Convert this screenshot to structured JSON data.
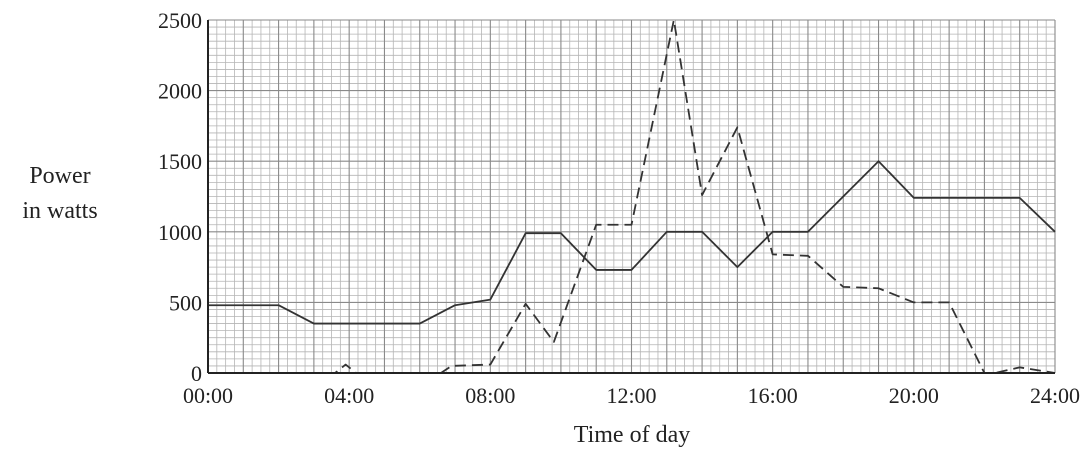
{
  "chart_data": {
    "type": "line",
    "title": "",
    "xlabel": "Time of day",
    "ylabel_lines": [
      "Power",
      "in watts"
    ],
    "xlim": [
      0,
      24
    ],
    "ylim": [
      0,
      2500
    ],
    "grid": true,
    "x_ticks": [
      {
        "value": 0,
        "label": "00:00"
      },
      {
        "value": 4,
        "label": "04:00"
      },
      {
        "value": 8,
        "label": "08:00"
      },
      {
        "value": 12,
        "label": "12:00"
      },
      {
        "value": 16,
        "label": "16:00"
      },
      {
        "value": 20,
        "label": "20:00"
      },
      {
        "value": 24,
        "label": "24:00"
      }
    ],
    "y_ticks": [
      {
        "value": 0,
        "label": "0"
      },
      {
        "value": 500,
        "label": "500"
      },
      {
        "value": 1000,
        "label": "1000"
      },
      {
        "value": 1500,
        "label": "1500"
      },
      {
        "value": 2000,
        "label": "2000"
      },
      {
        "value": 2500,
        "label": "2500"
      }
    ],
    "series": [
      {
        "line_style": "solid",
        "color": "#333333",
        "points": [
          [
            0,
            480
          ],
          [
            2,
            480
          ],
          [
            3,
            350
          ],
          [
            6,
            350
          ],
          [
            7,
            480
          ],
          [
            8,
            520
          ],
          [
            9,
            990
          ],
          [
            10,
            990
          ],
          [
            11,
            730
          ],
          [
            12,
            730
          ],
          [
            13,
            1000
          ],
          [
            14,
            1000
          ],
          [
            15,
            750
          ],
          [
            16,
            1000
          ],
          [
            17,
            1000
          ],
          [
            18,
            1250
          ],
          [
            19,
            1500
          ],
          [
            20,
            1240
          ],
          [
            23,
            1240
          ],
          [
            24,
            1000
          ]
        ]
      },
      {
        "line_style": "dashed",
        "color": "#333333",
        "points": [
          [
            0,
            0
          ],
          [
            3.6,
            0
          ],
          [
            3.9,
            60
          ],
          [
            4.2,
            0
          ],
          [
            6.6,
            0
          ],
          [
            6.9,
            50
          ],
          [
            8,
            60
          ],
          [
            9,
            490
          ],
          [
            9.8,
            220
          ],
          [
            11,
            1050
          ],
          [
            12,
            1050
          ],
          [
            13.2,
            2500
          ],
          [
            14,
            1260
          ],
          [
            15,
            1740
          ],
          [
            16,
            840
          ],
          [
            17,
            830
          ],
          [
            18,
            610
          ],
          [
            19,
            600
          ],
          [
            20,
            500
          ],
          [
            21,
            500
          ],
          [
            22,
            0
          ],
          [
            22.3,
            0
          ],
          [
            23,
            40
          ],
          [
            24,
            0
          ]
        ]
      }
    ]
  }
}
